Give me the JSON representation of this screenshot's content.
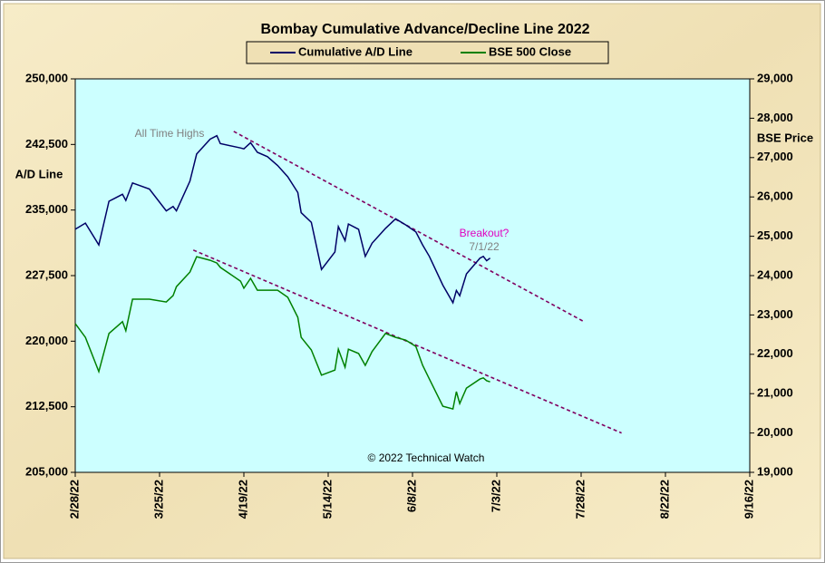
{
  "chart_data": {
    "type": "line",
    "title": "Bombay Cumulative Advance/Decline Line 2022",
    "ylabel": "A/D Line",
    "y2label": "BSE Price",
    "annotations": [
      "All Time Highs",
      "Breakout?",
      "7/1/22",
      "© 2022 Technical Watch"
    ],
    "x": [
      "2022-02-28",
      "2022-03-03",
      "2022-03-07",
      "2022-03-10",
      "2022-03-14",
      "2022-03-15",
      "2022-03-17",
      "2022-03-22",
      "2022-03-27",
      "2022-03-29",
      "2022-03-30",
      "2022-04-03",
      "2022-04-05",
      "2022-04-09",
      "2022-04-11",
      "2022-04-12",
      "2022-04-18",
      "2022-04-19",
      "2022-04-21",
      "2022-04-23",
      "2022-04-26",
      "2022-04-29",
      "2022-05-02",
      "2022-05-05",
      "2022-05-06",
      "2022-05-09",
      "2022-05-12",
      "2022-05-16",
      "2022-05-17",
      "2022-05-19",
      "2022-05-20",
      "2022-05-23",
      "2022-05-25",
      "2022-05-27",
      "2022-05-31",
      "2022-06-03",
      "2022-06-06",
      "2022-06-09",
      "2022-06-11",
      "2022-06-13",
      "2022-06-17",
      "2022-06-20",
      "2022-06-21",
      "2022-06-22",
      "2022-06-24",
      "2022-06-28",
      "2022-06-29",
      "2022-06-30",
      "2022-07-01"
    ],
    "series": [
      {
        "name": "Cumulative A/D Line",
        "color": "#000066",
        "axis": "y",
        "values": [
          232800,
          233500,
          231000,
          236000,
          236800,
          236100,
          238100,
          237400,
          234900,
          235400,
          234900,
          238300,
          241400,
          243100,
          243500,
          242600,
          242100,
          242000,
          242700,
          241600,
          241100,
          240100,
          238800,
          237000,
          234700,
          233600,
          228200,
          230200,
          233100,
          231500,
          233400,
          232800,
          229700,
          231200,
          232900,
          234000,
          233300,
          232500,
          231000,
          229700,
          226400,
          224400,
          225800,
          225200,
          227700,
          229500,
          229700,
          229200,
          229500
        ]
      },
      {
        "name": "BSE 500 Close",
        "color": "#008000",
        "axis": "y2",
        "values": [
          22780,
          22430,
          21560,
          22530,
          22830,
          22600,
          23400,
          23400,
          23330,
          23490,
          23720,
          24090,
          24480,
          24390,
          24320,
          24210,
          23860,
          23680,
          23930,
          23630,
          23630,
          23630,
          23450,
          22940,
          22430,
          22110,
          21470,
          21600,
          22130,
          21670,
          22130,
          22020,
          21720,
          22070,
          22530,
          22430,
          22360,
          22200,
          21720,
          21370,
          20680,
          20610,
          21050,
          20750,
          21140,
          21370,
          21400,
          21330,
          21300
        ]
      }
    ],
    "trendlines": [
      {
        "axis": "y",
        "color": "#800060",
        "x": [
          "2022-04-16",
          "2022-07-29"
        ],
        "values": [
          244000,
          222200
        ]
      },
      {
        "axis": "y2",
        "color": "#800060",
        "x": [
          "2022-04-04",
          "2022-08-09"
        ],
        "values": [
          24650,
          20000
        ]
      }
    ],
    "xlim": [
      "2022-02-28",
      "2022-09-16"
    ],
    "xticks": [
      {
        "value": "2022-02-28",
        "label": "2/28/22"
      },
      {
        "value": "2022-03-25",
        "label": "3/25/22"
      },
      {
        "value": "2022-04-19",
        "label": "4/19/22"
      },
      {
        "value": "2022-05-14",
        "label": "5/14/22"
      },
      {
        "value": "2022-06-08",
        "label": "6/8/22"
      },
      {
        "value": "2022-07-03",
        "label": "7/3/22"
      },
      {
        "value": "2022-07-28",
        "label": "7/28/22"
      },
      {
        "value": "2022-08-22",
        "label": "8/22/22"
      },
      {
        "value": "2022-09-16",
        "label": "9/16/22"
      }
    ],
    "ylim": [
      205000,
      250000
    ],
    "yticks": [
      {
        "value": 205000,
        "label": "205,000"
      },
      {
        "value": 212500,
        "label": "212,500"
      },
      {
        "value": 220000,
        "label": "220,000"
      },
      {
        "value": 227500,
        "label": "227,500"
      },
      {
        "value": 235000,
        "label": "235,000"
      },
      {
        "value": 242500,
        "label": "242,500"
      },
      {
        "value": 250000,
        "label": "250,000"
      }
    ],
    "y2lim": [
      19000,
      29000
    ],
    "y2ticks": [
      {
        "value": 19000,
        "label": "19,000"
      },
      {
        "value": 20000,
        "label": "20,000"
      },
      {
        "value": 21000,
        "label": "21,000"
      },
      {
        "value": 22000,
        "label": "22,000"
      },
      {
        "value": 23000,
        "label": "23,000"
      },
      {
        "value": 24000,
        "label": "24,000"
      },
      {
        "value": 25000,
        "label": "25,000"
      },
      {
        "value": 26000,
        "label": "26,000"
      },
      {
        "value": 27000,
        "label": "27,000"
      },
      {
        "value": 28000,
        "label": "28,000"
      },
      {
        "value": 29000,
        "label": "29,000"
      }
    ],
    "grid": false,
    "legend": "top"
  }
}
